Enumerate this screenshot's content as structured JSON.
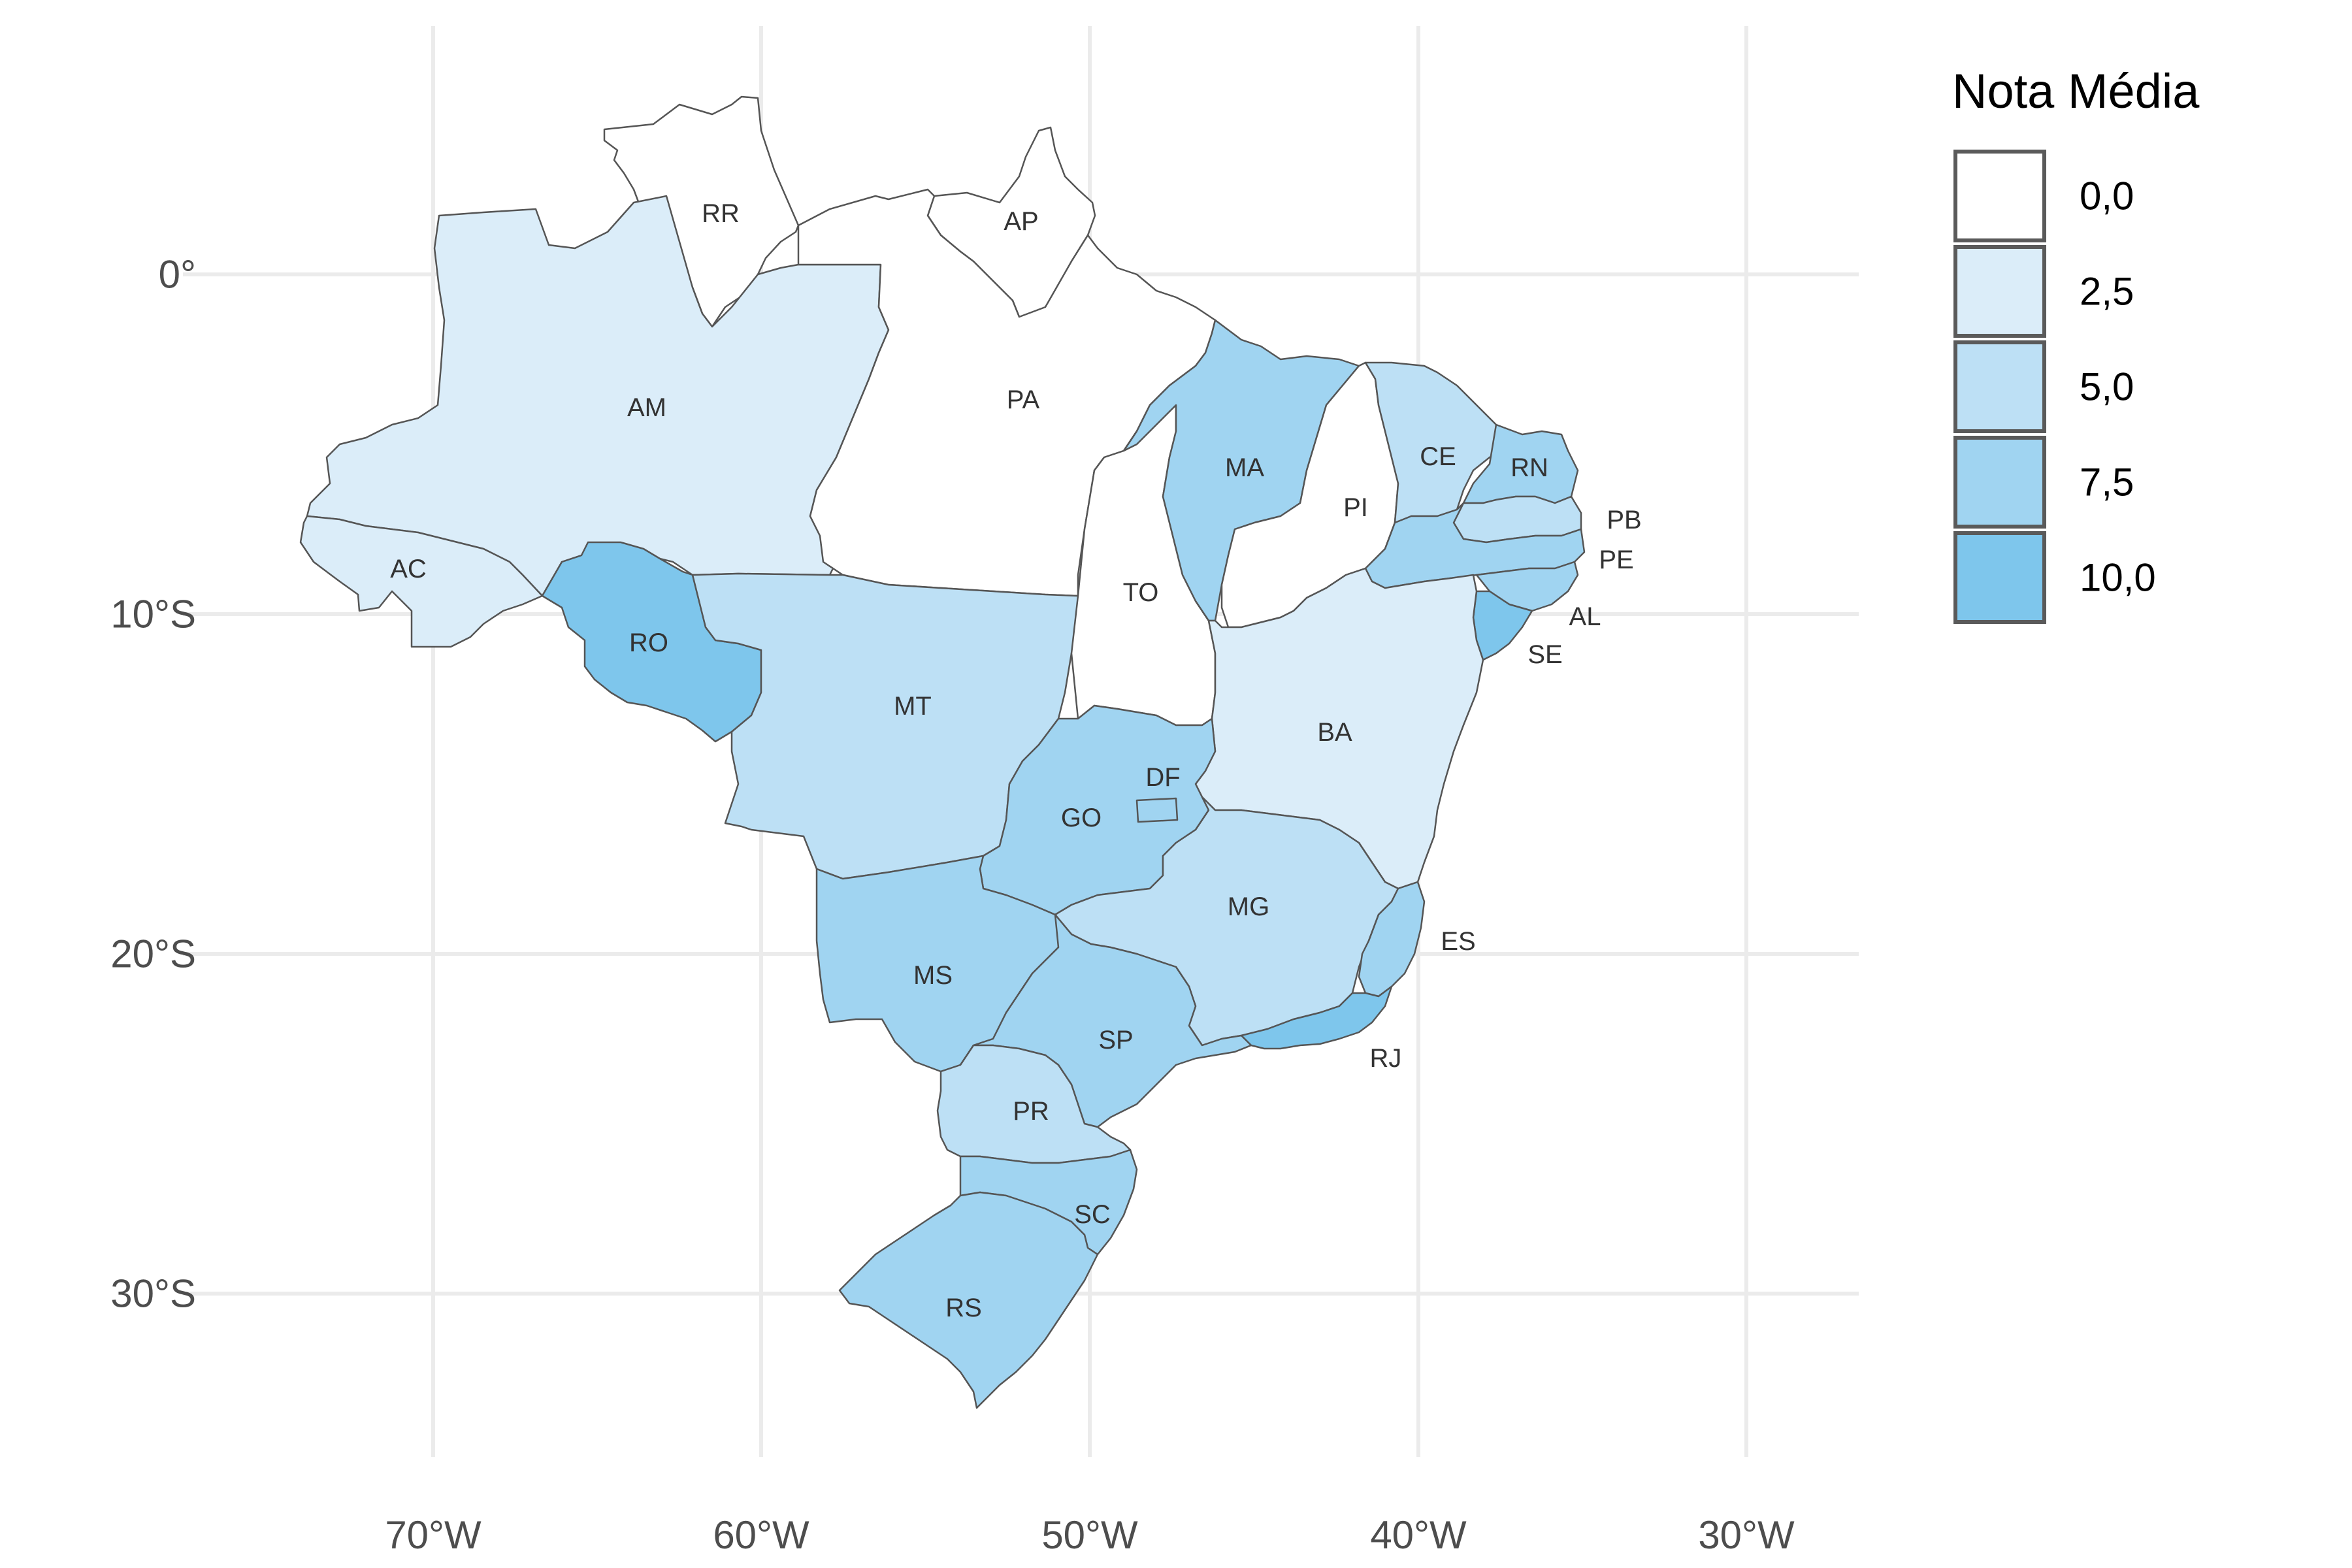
{
  "legend": {
    "title": "Nota Média",
    "keys": [
      {
        "label": "0,0",
        "color": "#ffffff"
      },
      {
        "label": "2,5",
        "color": "#dbedf9"
      },
      {
        "label": "5,0",
        "color": "#bde0f5"
      },
      {
        "label": "7,5",
        "color": "#a0d4f1"
      },
      {
        "label": "10,0",
        "color": "#7ec6ec"
      }
    ]
  },
  "axes": {
    "x_ticks": [
      "70°W",
      "60°W",
      "50°W",
      "40°W",
      "30°W"
    ],
    "y_ticks": [
      "0°",
      "10°S",
      "20°S",
      "30°S"
    ],
    "grid": true
  },
  "states": [
    {
      "code": "RR",
      "score": 0.0
    },
    {
      "code": "AP",
      "score": 0.0
    },
    {
      "code": "AM",
      "score": 2.5
    },
    {
      "code": "PA",
      "score": 0.0
    },
    {
      "code": "AC",
      "score": 2.5
    },
    {
      "code": "RO",
      "score": 10.0
    },
    {
      "code": "MT",
      "score": 5.0
    },
    {
      "code": "TO",
      "score": 0.0
    },
    {
      "code": "MA",
      "score": 7.5
    },
    {
      "code": "PI",
      "score": 0.0
    },
    {
      "code": "CE",
      "score": 5.0
    },
    {
      "code": "RN",
      "score": 7.5
    },
    {
      "code": "PB",
      "score": 5.0
    },
    {
      "code": "PE",
      "score": 7.5
    },
    {
      "code": "AL",
      "score": 7.5
    },
    {
      "code": "SE",
      "score": 10.0
    },
    {
      "code": "BA",
      "score": 2.5
    },
    {
      "code": "GO",
      "score": 7.5
    },
    {
      "code": "DF",
      "score": 7.5
    },
    {
      "code": "MG",
      "score": 5.0
    },
    {
      "code": "ES",
      "score": 7.5
    },
    {
      "code": "RJ",
      "score": 10.0
    },
    {
      "code": "MS",
      "score": 7.5
    },
    {
      "code": "SP",
      "score": 7.5
    },
    {
      "code": "PR",
      "score": 5.0
    },
    {
      "code": "SC",
      "score": 7.5
    },
    {
      "code": "RS",
      "score": 7.5
    }
  ]
}
